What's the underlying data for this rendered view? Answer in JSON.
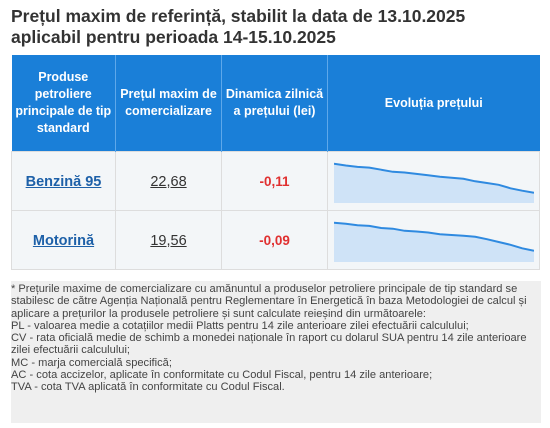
{
  "title": {
    "line1": "Prețul maxim de referință, stabilit la data de 13.10.2025",
    "line2": "aplicabil pentru perioada 14-15.10.2025"
  },
  "table": {
    "headers": [
      "Produse petroliere principale de tip standard",
      "Prețul maxim de comercializare",
      "Dinamica zilnică a prețului (lei)",
      "Evoluția prețului"
    ],
    "rows": [
      {
        "product": "Benzină 95",
        "price": "22,68",
        "change": "-0,11",
        "trend": [
          0.95,
          0.9,
          0.86,
          0.84,
          0.78,
          0.72,
          0.7,
          0.66,
          0.62,
          0.58,
          0.55,
          0.52,
          0.45,
          0.4,
          0.35,
          0.25,
          0.18,
          0.12
        ]
      },
      {
        "product": "Motorină",
        "price": "19,56",
        "change": "-0,09",
        "trend": [
          0.95,
          0.92,
          0.88,
          0.86,
          0.8,
          0.78,
          0.72,
          0.7,
          0.67,
          0.62,
          0.6,
          0.58,
          0.55,
          0.48,
          0.4,
          0.32,
          0.22,
          0.15
        ]
      }
    ]
  },
  "colors": {
    "header_bg": "#1a7fd8",
    "negative": "#e03030",
    "spark_line": "#2f8ae0",
    "spark_fill": "#cfe3f7"
  },
  "footnote": {
    "lines": [
      "* Prețurile maxime de comercializare cu amănuntul a produselor petroliere principale de tip standard se stabilesc de către Agenția Națională pentru Reglementare în Energetică în baza Metodologiei de calcul și aplicare a prețurilor la produsele petroliere și sunt calculate reieșind din următoarele:",
      "PL - valoarea medie a cotațiilor medii Platts pentru 14 zile anterioare zilei efectuării calculului;",
      "CV - rata oficială medie de schimb a monedei naționale în raport cu dolarul SUA pentru 14 zile anterioare zilei efectuării calculului;",
      "MC - marja comercială specifică;",
      "AC - cota accizelor, aplicate în conformitate cu Codul Fiscal, pentru 14 zile anterioare;",
      "TVA - cota TVA aplicată în conformitate cu Codul Fiscal."
    ]
  }
}
